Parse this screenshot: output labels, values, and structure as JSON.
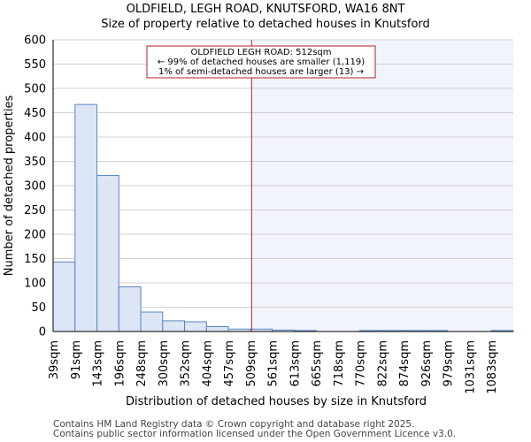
{
  "chart_data": {
    "type": "bar",
    "title": "OLDFIELD, LEGH ROAD, KNUTSFORD, WA16 8NT",
    "subtitle": "Size of property relative to detached houses in Knutsford",
    "xlabel": "Distribution of detached houses by size in Knutsford",
    "ylabel": "Number of detached properties",
    "ylim": [
      0,
      600
    ],
    "yticks": [
      0,
      50,
      100,
      150,
      200,
      250,
      300,
      350,
      400,
      450,
      500,
      550,
      600
    ],
    "categories": [
      "39sqm",
      "91sqm",
      "143sqm",
      "196sqm",
      "248sqm",
      "300sqm",
      "352sqm",
      "404sqm",
      "457sqm",
      "509sqm",
      "561sqm",
      "613sqm",
      "665sqm",
      "718sqm",
      "770sqm",
      "822sqm",
      "874sqm",
      "926sqm",
      "979sqm",
      "1031sqm",
      "1083sqm"
    ],
    "values": [
      143,
      467,
      321,
      92,
      40,
      22,
      20,
      10,
      5,
      5,
      3,
      2,
      0,
      0,
      2,
      2,
      2,
      2,
      0,
      0,
      2
    ],
    "marker": {
      "x_value": 512,
      "color": "#b22222"
    },
    "annotation": {
      "line1": "OLDFIELD LEGH ROAD: 512sqm",
      "line2": "← 99% of detached houses are smaller (1,119)",
      "line3": "1% of semi-detached houses are larger (13) →"
    },
    "colors": {
      "bar_fill": "#dce6f4",
      "bar_stroke": "#5a86c5",
      "highlight_region": "#f2f4fb",
      "grid": "#d0d0d0"
    }
  },
  "footer": {
    "line1": "Contains HM Land Registry data © Crown copyright and database right 2025.",
    "line2": "Contains public sector information licensed under the Open Government Licence v3.0."
  }
}
